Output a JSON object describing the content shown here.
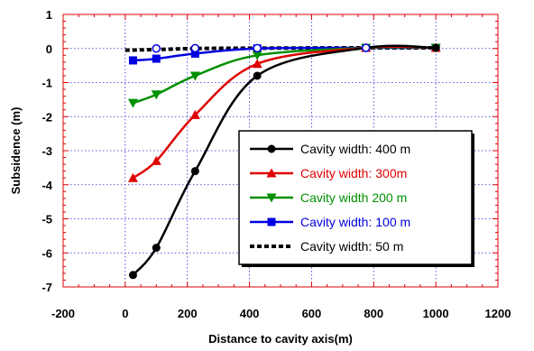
{
  "chart_data": {
    "type": "line",
    "xlabel": "Distance to cavity axis(m)",
    "ylabel": "Subsidence (m)",
    "xlim": [
      -200,
      1200
    ],
    "ylim": [
      -7,
      1
    ],
    "x_ticks": [
      -200,
      0,
      200,
      400,
      600,
      800,
      1000,
      1200
    ],
    "y_ticks": [
      1,
      0,
      -1,
      -2,
      -3,
      -4,
      -5,
      -6,
      -7
    ],
    "x_tick_labels": [
      "-200",
      "0",
      "200",
      "400",
      "600",
      "800",
      "1000",
      "1200"
    ],
    "y_tick_labels": [
      "1",
      "0",
      "-1",
      "-2",
      "-3",
      "-4",
      "-5",
      "-6",
      "-7"
    ],
    "grid": true,
    "legend_position": "inside-right",
    "series": [
      {
        "name": "Cavity width: 400 m",
        "color": "#000000",
        "marker": "circle",
        "line_style": "solid",
        "x": [
          25,
          100,
          225,
          425,
          775,
          1000
        ],
        "y": [
          -6.65,
          -5.85,
          -3.6,
          -0.8,
          0.02,
          0.02
        ]
      },
      {
        "name": "Cavity width: 300m",
        "color": "#e00000",
        "marker": "triangle-up",
        "line_style": "solid",
        "x": [
          25,
          100,
          225,
          425,
          775,
          1000
        ],
        "y": [
          -3.8,
          -3.3,
          -1.95,
          -0.45,
          0.02,
          0.02
        ]
      },
      {
        "name": "Cavity width 200 m",
        "color": "#009000",
        "marker": "triangle-down",
        "line_style": "solid",
        "x": [
          25,
          100,
          225,
          425,
          775,
          1000
        ],
        "y": [
          -1.6,
          -1.35,
          -0.8,
          -0.2,
          0.02,
          0.02
        ]
      },
      {
        "name": "Cavity width: 100 m",
        "color": "#0000e0",
        "marker": "square",
        "line_style": "solid",
        "x": [
          25,
          100,
          225,
          425,
          775,
          1000
        ],
        "y": [
          -0.35,
          -0.3,
          -0.15,
          0.0,
          0.02,
          0.02
        ]
      },
      {
        "name": "Cavity width: 50 m",
        "color": "#000000",
        "marker": "none",
        "line_style": "dotted",
        "x": [
          0,
          100,
          225,
          425,
          775,
          1000
        ],
        "y": [
          -0.05,
          -0.03,
          0.0,
          0.01,
          0.02,
          0.02
        ]
      }
    ],
    "open_markers": {
      "x": [
        100,
        225,
        425,
        775
      ],
      "y": [
        0.0,
        0.01,
        0.01,
        0.02
      ]
    }
  }
}
